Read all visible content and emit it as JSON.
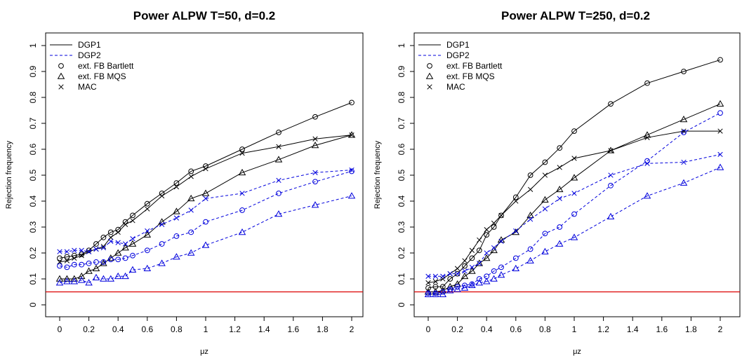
{
  "chart_data": [
    {
      "type": "line",
      "title": "Power ALPW T=50, d=0.2",
      "xlabel": "μz",
      "ylabel": "Rejection frequency",
      "xlim": [
        0,
        2
      ],
      "ylim": [
        0,
        1
      ],
      "x_ticks": [
        "0",
        "0.2",
        "0.4",
        "0.6",
        "0.8",
        "1",
        "1.2",
        "1.4",
        "1.6",
        "1.8",
        "2"
      ],
      "y_ticks": [
        "0",
        "0.1",
        "0.2",
        "0.3",
        "0.4",
        "0.5",
        "0.6",
        "0.7",
        "0.8",
        "0.9",
        "1"
      ],
      "hline": {
        "y": 0.05,
        "color": "#dd0000"
      },
      "grid": false,
      "legend_position": "top-left",
      "legend": [
        {
          "label": "DGP1",
          "kind": "line",
          "dash": "solid"
        },
        {
          "label": "DGP2",
          "kind": "line",
          "dash": "dashed"
        },
        {
          "label": "ext. FB Bartlett",
          "kind": "marker",
          "marker": "circle"
        },
        {
          "label": "ext. FB MQS",
          "kind": "marker",
          "marker": "triangle"
        },
        {
          "label": "MAC",
          "kind": "marker",
          "marker": "cross"
        }
      ],
      "x": [
        0,
        0.05,
        0.1,
        0.15,
        0.2,
        0.25,
        0.3,
        0.35,
        0.4,
        0.45,
        0.5,
        0.6,
        0.7,
        0.8,
        0.9,
        1,
        1.25,
        1.5,
        1.75,
        2
      ],
      "series": [
        {
          "dgp": "DGP1",
          "method": "ext. FB Bartlett",
          "marker": "circle",
          "color": "#000000",
          "dash": "solid",
          "values": [
            0.18,
            0.185,
            0.19,
            0.195,
            0.21,
            0.235,
            0.26,
            0.28,
            0.29,
            0.32,
            0.345,
            0.39,
            0.43,
            0.47,
            0.515,
            0.535,
            0.6,
            0.665,
            0.725,
            0.78
          ]
        },
        {
          "dgp": "DGP1",
          "method": "ext. FB MQS",
          "marker": "triangle",
          "color": "#000000",
          "dash": "solid",
          "values": [
            0.1,
            0.1,
            0.1,
            0.11,
            0.13,
            0.14,
            0.16,
            0.18,
            0.2,
            0.22,
            0.235,
            0.27,
            0.32,
            0.36,
            0.41,
            0.43,
            0.51,
            0.56,
            0.615,
            0.655
          ]
        },
        {
          "dgp": "DGP1",
          "method": "MAC",
          "marker": "cross",
          "color": "#000000",
          "dash": "solid",
          "values": [
            0.165,
            0.17,
            0.18,
            0.19,
            0.205,
            0.215,
            0.225,
            0.26,
            0.28,
            0.31,
            0.325,
            0.37,
            0.42,
            0.455,
            0.495,
            0.525,
            0.585,
            0.61,
            0.64,
            0.655
          ]
        },
        {
          "dgp": "DGP2",
          "method": "ext. FB Bartlett",
          "marker": "circle",
          "color": "#0000dd",
          "dash": "dashed",
          "values": [
            0.15,
            0.145,
            0.155,
            0.155,
            0.16,
            0.165,
            0.165,
            0.175,
            0.175,
            0.18,
            0.19,
            0.21,
            0.235,
            0.265,
            0.28,
            0.32,
            0.365,
            0.43,
            0.475,
            0.515
          ]
        },
        {
          "dgp": "DGP2",
          "method": "ext. FB MQS",
          "marker": "triangle",
          "color": "#0000dd",
          "dash": "dashed",
          "values": [
            0.085,
            0.09,
            0.09,
            0.095,
            0.085,
            0.105,
            0.1,
            0.1,
            0.11,
            0.11,
            0.135,
            0.14,
            0.16,
            0.185,
            0.2,
            0.23,
            0.28,
            0.35,
            0.385,
            0.42
          ]
        },
        {
          "dgp": "DGP2",
          "method": "MAC",
          "marker": "cross",
          "color": "#0000dd",
          "dash": "dashed",
          "values": [
            0.205,
            0.205,
            0.21,
            0.21,
            0.205,
            0.215,
            0.22,
            0.245,
            0.24,
            0.235,
            0.255,
            0.285,
            0.31,
            0.335,
            0.365,
            0.41,
            0.43,
            0.48,
            0.51,
            0.52
          ]
        }
      ]
    },
    {
      "type": "line",
      "title": "Power ALPW T=250, d=0.2",
      "xlabel": "μz",
      "ylabel": "Rejection frequency",
      "xlim": [
        0,
        2
      ],
      "ylim": [
        0,
        1
      ],
      "x_ticks": [
        "0",
        "0.2",
        "0.4",
        "0.6",
        "0.8",
        "1",
        "1.2",
        "1.4",
        "1.6",
        "1.8",
        "2"
      ],
      "y_ticks": [
        "0",
        "0.1",
        "0.2",
        "0.3",
        "0.4",
        "0.5",
        "0.6",
        "0.7",
        "0.8",
        "0.9",
        "1"
      ],
      "hline": {
        "y": 0.05,
        "color": "#dd0000"
      },
      "grid": false,
      "legend_position": "top-left",
      "legend": [
        {
          "label": "DGP1",
          "kind": "line",
          "dash": "solid"
        },
        {
          "label": "DGP2",
          "kind": "line",
          "dash": "dashed"
        },
        {
          "label": "ext. FB Bartlett",
          "kind": "marker",
          "marker": "circle"
        },
        {
          "label": "ext. FB MQS",
          "kind": "marker",
          "marker": "triangle"
        },
        {
          "label": "MAC",
          "kind": "marker",
          "marker": "cross"
        }
      ],
      "x": [
        0,
        0.05,
        0.1,
        0.15,
        0.2,
        0.25,
        0.3,
        0.35,
        0.4,
        0.45,
        0.5,
        0.6,
        0.7,
        0.8,
        0.9,
        1,
        1.25,
        1.5,
        1.75,
        2
      ],
      "series": [
        {
          "dgp": "DGP1",
          "method": "ext. FB Bartlett",
          "marker": "circle",
          "color": "#000000",
          "dash": "solid",
          "values": [
            0.065,
            0.07,
            0.07,
            0.1,
            0.12,
            0.15,
            0.18,
            0.21,
            0.27,
            0.3,
            0.345,
            0.415,
            0.5,
            0.55,
            0.605,
            0.67,
            0.775,
            0.855,
            0.9,
            0.945
          ]
        },
        {
          "dgp": "DGP1",
          "method": "ext. FB MQS",
          "marker": "triangle",
          "color": "#000000",
          "dash": "solid",
          "values": [
            0.05,
            0.05,
            0.055,
            0.07,
            0.08,
            0.11,
            0.13,
            0.16,
            0.18,
            0.21,
            0.25,
            0.28,
            0.345,
            0.405,
            0.445,
            0.49,
            0.595,
            0.655,
            0.715,
            0.775
          ]
        },
        {
          "dgp": "DGP1",
          "method": "MAC",
          "marker": "cross",
          "color": "#000000",
          "dash": "solid",
          "values": [
            0.085,
            0.09,
            0.1,
            0.12,
            0.14,
            0.17,
            0.21,
            0.25,
            0.29,
            0.315,
            0.345,
            0.4,
            0.445,
            0.5,
            0.53,
            0.565,
            0.595,
            0.645,
            0.67,
            0.67
          ]
        },
        {
          "dgp": "DGP2",
          "method": "ext. FB Bartlett",
          "marker": "circle",
          "color": "#0000dd",
          "dash": "dashed",
          "values": [
            0.045,
            0.045,
            0.05,
            0.06,
            0.07,
            0.075,
            0.08,
            0.1,
            0.11,
            0.13,
            0.145,
            0.18,
            0.215,
            0.275,
            0.3,
            0.35,
            0.46,
            0.555,
            0.665,
            0.74
          ]
        },
        {
          "dgp": "DGP2",
          "method": "ext. FB MQS",
          "marker": "triangle",
          "color": "#0000dd",
          "dash": "dashed",
          "values": [
            0.04,
            0.04,
            0.04,
            0.055,
            0.06,
            0.065,
            0.075,
            0.085,
            0.09,
            0.1,
            0.115,
            0.14,
            0.17,
            0.205,
            0.235,
            0.26,
            0.34,
            0.42,
            0.47,
            0.53
          ]
        },
        {
          "dgp": "DGP2",
          "method": "MAC",
          "marker": "cross",
          "color": "#0000dd",
          "dash": "dashed",
          "values": [
            0.11,
            0.11,
            0.11,
            0.12,
            0.12,
            0.13,
            0.145,
            0.16,
            0.2,
            0.22,
            0.245,
            0.285,
            0.33,
            0.37,
            0.41,
            0.43,
            0.5,
            0.545,
            0.55,
            0.58
          ]
        }
      ]
    }
  ]
}
